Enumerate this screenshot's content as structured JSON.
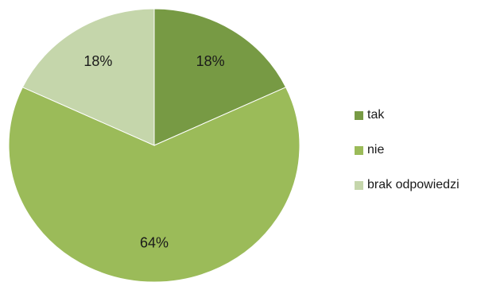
{
  "chart_data": {
    "type": "pie",
    "categories": [
      "tak",
      "nie",
      "brak odpowiedzi"
    ],
    "values": [
      18,
      64,
      18
    ],
    "data_labels": [
      "18%",
      "64%",
      "18%"
    ],
    "colors": [
      "#779a44",
      "#9bbb59",
      "#c5d6ab"
    ],
    "legend_position": "right",
    "start_angle": "12 o'clock, clockwise",
    "title": ""
  }
}
